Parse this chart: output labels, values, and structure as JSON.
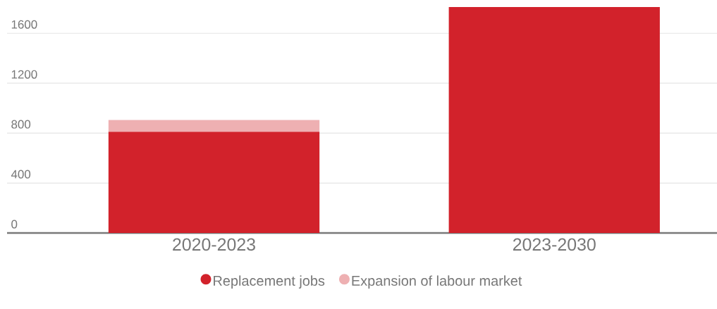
{
  "chart_data": {
    "type": "bar",
    "stacked": true,
    "categories": [
      "2020-2023",
      "2023-2030"
    ],
    "series": [
      {
        "name": "Replacement jobs",
        "color": "#d2222b",
        "values": [
          810,
          1810
        ]
      },
      {
        "name": "Expansion of labour market",
        "color": "#eeb0b2",
        "values": [
          95,
          null
        ]
      }
    ],
    "ylim": [
      0,
      1810
    ],
    "yticks": [
      0,
      400,
      800,
      1200,
      1600
    ],
    "grid": "y",
    "legend": "bottom",
    "marker": "circle"
  }
}
